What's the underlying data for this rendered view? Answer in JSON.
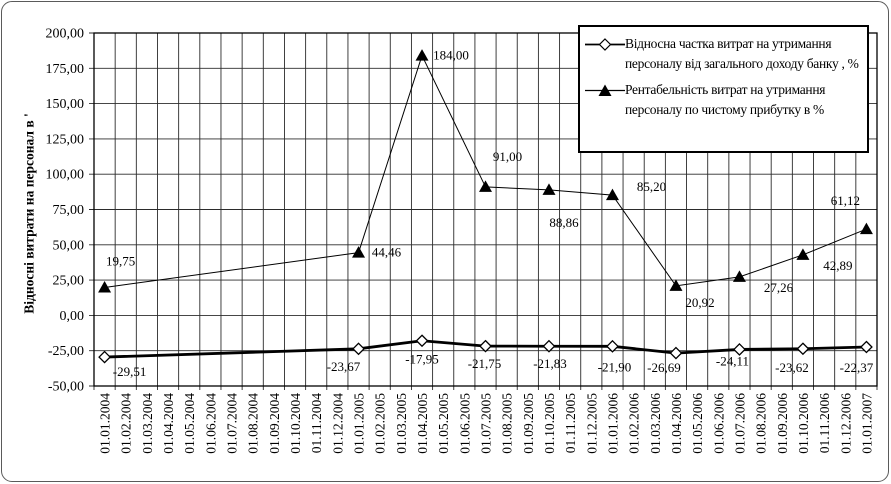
{
  "chart_data": {
    "type": "line",
    "title": "",
    "ylabel": "Відносні витрати на персонал в '",
    "ylim": [
      -50,
      200
    ],
    "ytick_step": 25,
    "ytick_labels": [
      "200,00",
      "175,00",
      "150,00",
      "125,00",
      "100,00",
      "75,00",
      "50,00",
      "25,00",
      "0,00",
      "-25,00",
      "-50,00"
    ],
    "categories": [
      "01.01.2004",
      "01.02.2004",
      "01.03.2004",
      "01.04.2004",
      "01.05.2004",
      "01.06.2004",
      "01.07.2004",
      "01.08.2004",
      "01.09.2004",
      "01.10.2004",
      "01.11.2004",
      "01.12.2004",
      "01.01.2005",
      "01.02.2005",
      "01.03.2005",
      "01.04.2005",
      "01.05.2005",
      "01.06.2005",
      "01.07.2005",
      "01.08.2005",
      "01.09.2005",
      "01.10.2005",
      "01.11.2005",
      "01.12.2005",
      "01.01.2006",
      "01.02.2006",
      "01.03.2006",
      "01.04.2006",
      "01.05.2006",
      "01.06.2006",
      "01.07.2006",
      "01.08.2006",
      "01.09.2006",
      "01.10.2006",
      "01.11.2006",
      "01.12.2006",
      "01.01.2007"
    ],
    "grid": true,
    "legend_position": "top-right",
    "colors": {
      "series": "#000000",
      "background": "#ffffff",
      "grid": "#2b2b2b"
    },
    "series": [
      {
        "name": "Відносна частка витрат на утримання персоналу від загального доходу банку , %",
        "marker": "diamond",
        "line_width": 2.8,
        "x": [
          "01.01.2004",
          "01.01.2005",
          "01.04.2005",
          "01.07.2005",
          "01.10.2005",
          "01.01.2006",
          "01.04.2006",
          "01.07.2006",
          "01.10.2006",
          "01.01.2007"
        ],
        "values": [
          -29.51,
          -23.67,
          -17.95,
          -21.75,
          -21.83,
          -21.9,
          -26.69,
          -24.11,
          -23.62,
          -22.37
        ],
        "point_labels": [
          "-29,51",
          "-23,67",
          "-17,95",
          "-21,75",
          "-21,83",
          "-21,90",
          "-26,69",
          "-24,11",
          "-23,62",
          "-22,37"
        ],
        "label_offsets": [
          [
            25,
            19
          ],
          [
            -15,
            22
          ],
          [
            0,
            23
          ],
          [
            -1,
            22
          ],
          [
            1,
            22
          ],
          [
            2,
            25
          ],
          [
            -12,
            19
          ],
          [
            -7,
            16
          ],
          [
            -11,
            23
          ],
          [
            -10,
            25
          ]
        ]
      },
      {
        "name": "Рентабельність витрат на утримання персоналу по чистому прибутку  в %",
        "marker": "triangle",
        "line_width": 1,
        "x": [
          "01.01.2004",
          "01.01.2005",
          "01.04.2005",
          "01.07.2005",
          "01.10.2005",
          "01.01.2006",
          "01.04.2006",
          "01.07.2006",
          "01.10.2006",
          "01.01.2007"
        ],
        "values": [
          19.75,
          44.46,
          184.0,
          91.0,
          88.86,
          85.2,
          20.92,
          27.26,
          42.89,
          61.12
        ],
        "point_labels": [
          "19,75",
          "44,46",
          "184,00",
          "91,00",
          "88,86",
          "85,20",
          "20,92",
          "27,26",
          "42,89",
          "61,12"
        ],
        "label_offsets": [
          [
            16,
            -22
          ],
          [
            28,
            4
          ],
          [
            29,
            4
          ],
          [
            22,
            -26
          ],
          [
            15,
            37
          ],
          [
            39,
            -4
          ],
          [
            24,
            21
          ],
          [
            39,
            15
          ],
          [
            35,
            15
          ],
          [
            -21,
            -24
          ]
        ]
      }
    ]
  }
}
